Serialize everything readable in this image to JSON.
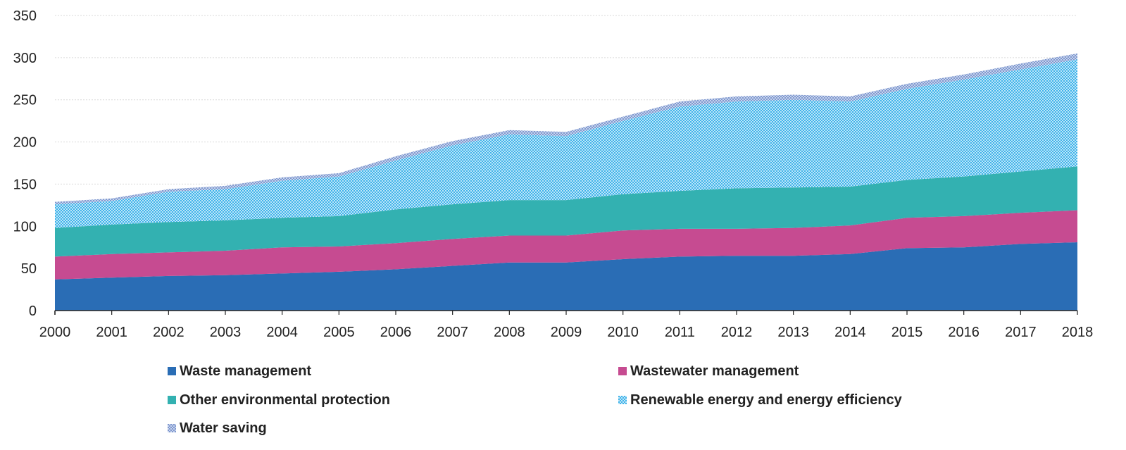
{
  "chart_data": {
    "type": "area",
    "stacked": true,
    "title": "",
    "xlabel": "",
    "ylabel": "",
    "ylim": [
      0,
      350
    ],
    "yticks": [
      "0",
      "50",
      "100",
      "150",
      "200",
      "250",
      "300",
      "350"
    ],
    "categories": [
      "2000",
      "2001",
      "2002",
      "2003",
      "2004",
      "2005",
      "2006",
      "2007",
      "2008",
      "2009",
      "2010",
      "2011",
      "2012",
      "2013",
      "2014",
      "2015",
      "2016",
      "2017",
      "2018"
    ],
    "grid": true,
    "legend_position": "bottom",
    "series": [
      {
        "name": "Waste management",
        "color": "#2a6db5",
        "pattern": "solid",
        "values": [
          37,
          39,
          41,
          42,
          44,
          46,
          49,
          53,
          57,
          57,
          61,
          64,
          65,
          65,
          67,
          74,
          75,
          79,
          81
        ]
      },
      {
        "name": "Wastewater management",
        "color": "#c64b91",
        "pattern": "solid",
        "values": [
          27,
          28,
          28,
          29,
          31,
          30,
          31,
          32,
          32,
          32,
          34,
          33,
          32,
          33,
          34,
          36,
          37,
          37,
          38
        ]
      },
      {
        "name": "Other environmental protection",
        "color": "#33b1b1",
        "pattern": "solid",
        "values": [
          34,
          35,
          36,
          36,
          35,
          36,
          40,
          41,
          42,
          42,
          43,
          45,
          48,
          48,
          46,
          45,
          47,
          49,
          52
        ]
      },
      {
        "name": "Renewable energy and energy efficiency",
        "color": "#5bc2ef",
        "pattern": "dots",
        "values": [
          28,
          28,
          36,
          37,
          44,
          47,
          58,
          70,
          78,
          76,
          87,
          100,
          103,
          104,
          101,
          108,
          115,
          121,
          127
        ]
      },
      {
        "name": "Water saving",
        "color": "#8ba6d8",
        "pattern": "dots",
        "values": [
          3,
          3,
          3,
          4,
          4,
          4,
          5,
          5,
          5,
          5,
          5,
          6,
          6,
          6,
          6,
          6,
          6,
          7,
          7
        ]
      }
    ]
  }
}
